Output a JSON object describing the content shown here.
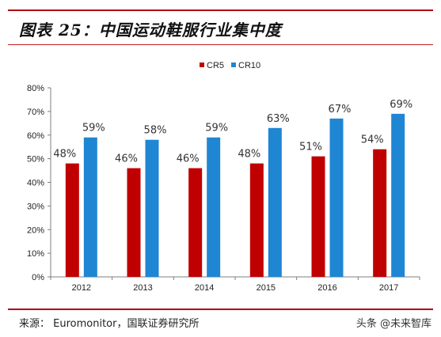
{
  "header": {
    "title": "图表 25：中国运动鞋服行业集中度"
  },
  "footer": {
    "source": "来源： Euromonitor，国联证券研究所",
    "watermark": "头条 @未来智库"
  },
  "colors": {
    "rule": "#b0001a",
    "cr5": "#c00000",
    "cr10": "#1f86d4"
  },
  "chart_data": {
    "type": "bar",
    "categories": [
      "2012",
      "2013",
      "2014",
      "2015",
      "2016",
      "2017"
    ],
    "series": [
      {
        "name": "CR5",
        "values": [
          48,
          46,
          46,
          48,
          51,
          54
        ],
        "labels": [
          "48%",
          "46%",
          "46%",
          "48%",
          "51%",
          "54%"
        ]
      },
      {
        "name": "CR10",
        "values": [
          59,
          58,
          59,
          63,
          67,
          69
        ],
        "labels": [
          "59%",
          "58%",
          "59%",
          "63%",
          "67%",
          "69%"
        ]
      }
    ],
    "ylim": [
      0,
      80
    ],
    "yticks": [
      0,
      10,
      20,
      30,
      40,
      50,
      60,
      70,
      80
    ],
    "ytick_labels": [
      "0%",
      "10%",
      "20%",
      "30%",
      "40%",
      "50%",
      "60%",
      "70%",
      "80%"
    ],
    "grid": false,
    "legend_position": "top-center"
  }
}
